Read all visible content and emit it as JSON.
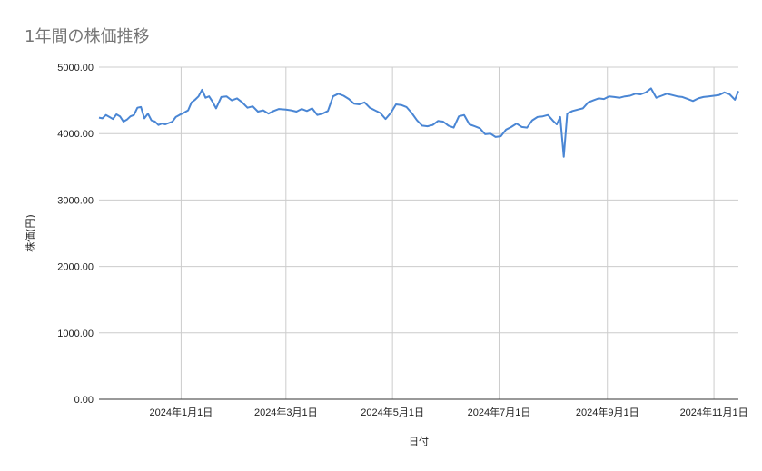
{
  "chart_data": {
    "type": "line",
    "title": "1年間の株価推移",
    "xlabel": "日付",
    "ylabel": "株価(円)",
    "ylim": [
      0,
      5000
    ],
    "y_ticks": [
      "0.00",
      "1000.00",
      "2000.00",
      "3000.00",
      "4000.00",
      "5000.00"
    ],
    "x_range": [
      "2023-11-15",
      "2024-11-15"
    ],
    "x_ticks": [
      {
        "date": "2024-01-01",
        "label": "2024年1月1日"
      },
      {
        "date": "2024-03-01",
        "label": "2024年3月1日"
      },
      {
        "date": "2024-05-01",
        "label": "2024年5月1日"
      },
      {
        "date": "2024-07-01",
        "label": "2024年7月1日"
      },
      {
        "date": "2024-09-01",
        "label": "2024年9月1日"
      },
      {
        "date": "2024-11-01",
        "label": "2024年11月1日"
      }
    ],
    "grid": true,
    "line_color": "#4a86d4",
    "series": [
      {
        "x": [
          "2023-11-15",
          "2023-11-17",
          "2023-11-19",
          "2023-11-21",
          "2023-11-23",
          "2023-11-25",
          "2023-11-27",
          "2023-11-29",
          "2023-12-01",
          "2023-12-03",
          "2023-12-05",
          "2023-12-07",
          "2023-12-09",
          "2023-12-11",
          "2023-12-13",
          "2023-12-15",
          "2023-12-17",
          "2023-12-19",
          "2023-12-21",
          "2023-12-23",
          "2023-12-25",
          "2023-12-27",
          "2023-12-29",
          "2023-12-31",
          "2024-01-03",
          "2024-01-05",
          "2024-01-07",
          "2024-01-09",
          "2024-01-11",
          "2024-01-13",
          "2024-01-15",
          "2024-01-17",
          "2024-01-19",
          "2024-01-21",
          "2024-01-24",
          "2024-01-27",
          "2024-01-30",
          "2024-02-02",
          "2024-02-05",
          "2024-02-08",
          "2024-02-11",
          "2024-02-14",
          "2024-02-17",
          "2024-02-20",
          "2024-02-23",
          "2024-02-26",
          "2024-03-01",
          "2024-03-04",
          "2024-03-07",
          "2024-03-10",
          "2024-03-13",
          "2024-03-16",
          "2024-03-19",
          "2024-03-22",
          "2024-03-25",
          "2024-03-28",
          "2024-03-31",
          "2024-04-03",
          "2024-04-06",
          "2024-04-09",
          "2024-04-12",
          "2024-04-15",
          "2024-04-18",
          "2024-04-21",
          "2024-04-24",
          "2024-04-27",
          "2024-04-30",
          "2024-05-03",
          "2024-05-06",
          "2024-05-09",
          "2024-05-12",
          "2024-05-15",
          "2024-05-18",
          "2024-05-21",
          "2024-05-24",
          "2024-05-27",
          "2024-05-30",
          "2024-06-02",
          "2024-06-05",
          "2024-06-08",
          "2024-06-11",
          "2024-06-14",
          "2024-06-17",
          "2024-06-20",
          "2024-06-23",
          "2024-06-26",
          "2024-06-29",
          "2024-07-02",
          "2024-07-05",
          "2024-07-08",
          "2024-07-11",
          "2024-07-14",
          "2024-07-17",
          "2024-07-20",
          "2024-07-23",
          "2024-07-26",
          "2024-07-29",
          "2024-08-01",
          "2024-08-03",
          "2024-08-05",
          "2024-08-07",
          "2024-08-09",
          "2024-08-12",
          "2024-08-15",
          "2024-08-18",
          "2024-08-21",
          "2024-08-24",
          "2024-08-27",
          "2024-08-30",
          "2024-09-02",
          "2024-09-05",
          "2024-09-08",
          "2024-09-11",
          "2024-09-14",
          "2024-09-17",
          "2024-09-20",
          "2024-09-23",
          "2024-09-26",
          "2024-09-29",
          "2024-10-02",
          "2024-10-05",
          "2024-10-08",
          "2024-10-11",
          "2024-10-14",
          "2024-10-17",
          "2024-10-20",
          "2024-10-23",
          "2024-10-26",
          "2024-10-29",
          "2024-11-01",
          "2024-11-04",
          "2024-11-07",
          "2024-11-10",
          "2024-11-13",
          "2024-11-15"
        ],
        "y": [
          4240,
          4230,
          4280,
          4250,
          4220,
          4290,
          4260,
          4180,
          4210,
          4260,
          4280,
          4390,
          4400,
          4230,
          4300,
          4200,
          4180,
          4130,
          4150,
          4140,
          4160,
          4180,
          4250,
          4280,
          4320,
          4350,
          4470,
          4510,
          4560,
          4660,
          4540,
          4560,
          4480,
          4380,
          4550,
          4560,
          4500,
          4530,
          4470,
          4390,
          4410,
          4330,
          4350,
          4300,
          4340,
          4370,
          4360,
          4350,
          4330,
          4370,
          4340,
          4380,
          4280,
          4300,
          4340,
          4560,
          4600,
          4570,
          4520,
          4450,
          4440,
          4470,
          4390,
          4350,
          4310,
          4220,
          4310,
          4440,
          4430,
          4400,
          4310,
          4200,
          4120,
          4110,
          4130,
          4190,
          4180,
          4120,
          4090,
          4260,
          4280,
          4140,
          4110,
          4080,
          3990,
          4000,
          3950,
          3960,
          4060,
          4100,
          4150,
          4100,
          4090,
          4200,
          4250,
          4260,
          4280,
          4190,
          4140,
          4250,
          3650,
          4300,
          4340,
          4360,
          4380,
          4470,
          4500,
          4530,
          4520,
          4560,
          4550,
          4540,
          4560,
          4570,
          4600,
          4590,
          4620,
          4680,
          4540,
          4570,
          4600,
          4580,
          4560,
          4550,
          4520,
          4490,
          4530,
          4550,
          4560,
          4570,
          4580,
          4620,
          4590,
          4510,
          4640
        ]
      }
    ]
  }
}
